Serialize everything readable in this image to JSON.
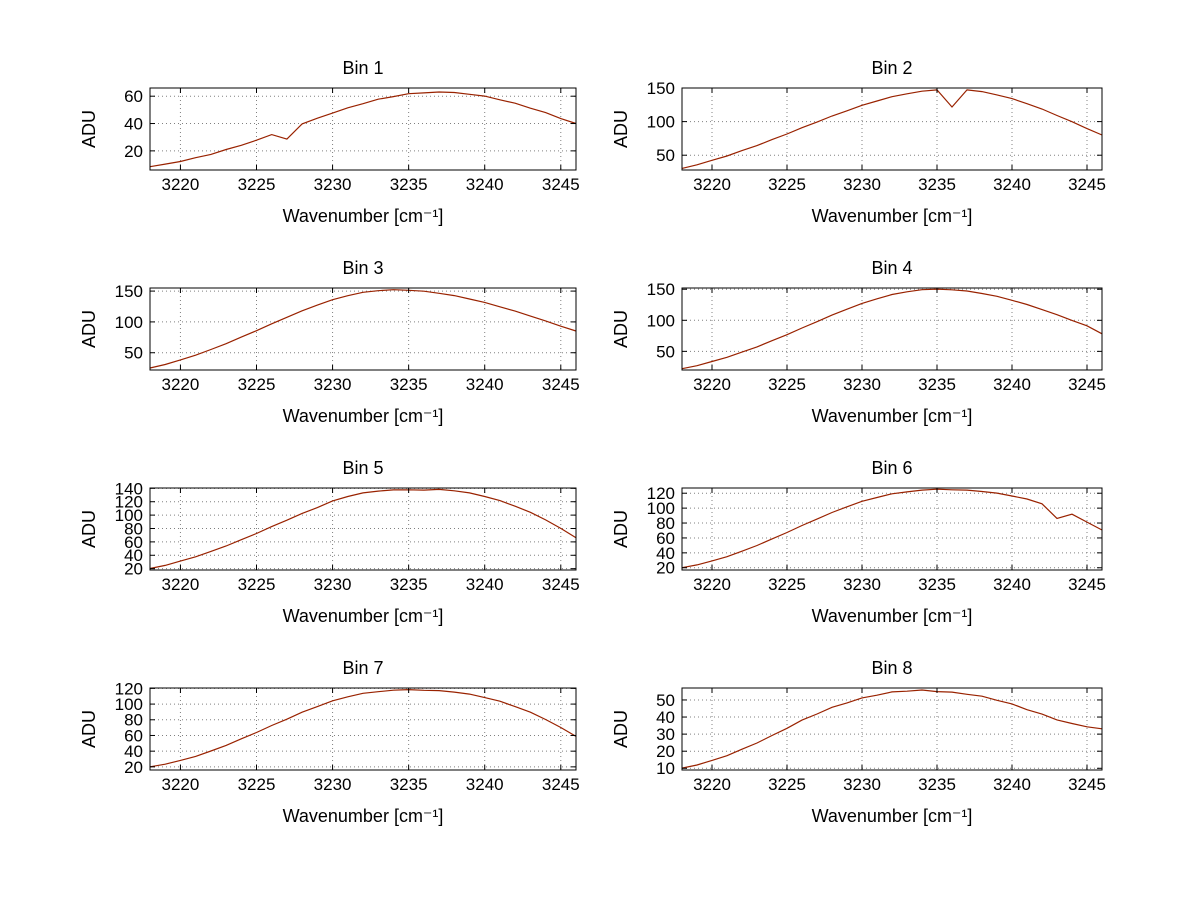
{
  "figure": {
    "background": "#ffffff",
    "line_color": "#992200",
    "grid_color": "#808080",
    "axis_color": "#000000"
  },
  "chart_data": [
    {
      "type": "line",
      "title": "Bin 1",
      "xlabel": "Wavenumber [cm⁻¹]",
      "ylabel": "ADU",
      "grid": true,
      "xlim": [
        3218,
        3246
      ],
      "ylim": [
        6,
        66
      ],
      "xticks": [
        3220,
        3225,
        3230,
        3235,
        3240,
        3245
      ],
      "yticks": [
        20,
        40,
        60
      ],
      "x": [
        3218,
        3219,
        3220,
        3221,
        3222,
        3223,
        3224,
        3225,
        3226,
        3227,
        3228,
        3229,
        3230,
        3231,
        3232,
        3233,
        3234,
        3235,
        3236,
        3237,
        3238,
        3239,
        3240,
        3241,
        3242,
        3243,
        3244,
        3245,
        3246
      ],
      "series": [
        {
          "name": "spectrum",
          "color": "#992200",
          "values": [
            8.4,
            10.3,
            12.2,
            15.0,
            17.4,
            21.0,
            24.1,
            27.8,
            31.9,
            28.6,
            39.7,
            43.9,
            47.6,
            51.5,
            54.5,
            57.8,
            59.7,
            61.8,
            62.4,
            63.1,
            62.7,
            61.4,
            60.1,
            57.4,
            54.9,
            51.2,
            48.0,
            43.6,
            40.0
          ]
        }
      ]
    },
    {
      "type": "line",
      "title": "Bin 2",
      "xlabel": "Wavenumber [cm⁻¹]",
      "ylabel": "ADU",
      "grid": true,
      "xlim": [
        3218,
        3246
      ],
      "ylim": [
        28,
        150
      ],
      "xticks": [
        3220,
        3225,
        3230,
        3235,
        3240,
        3245
      ],
      "yticks": [
        50,
        100,
        150
      ],
      "x": [
        3218,
        3219,
        3220,
        3221,
        3222,
        3223,
        3224,
        3225,
        3226,
        3227,
        3228,
        3229,
        3230,
        3231,
        3232,
        3233,
        3234,
        3235,
        3236,
        3237,
        3238,
        3239,
        3240,
        3241,
        3242,
        3243,
        3244,
        3245,
        3246
      ],
      "series": [
        {
          "name": "spectrum",
          "color": "#992200",
          "values": [
            30.4,
            35.7,
            42.5,
            48.9,
            56.8,
            64.3,
            73.3,
            81.6,
            90.9,
            99.3,
            108.4,
            116.1,
            124.3,
            130.6,
            137.1,
            141.4,
            145.3,
            147.1,
            121.8,
            147.2,
            144.6,
            139.8,
            134.3,
            126.6,
            118.8,
            109.1,
            99.9,
            89.6,
            80.1
          ]
        }
      ]
    },
    {
      "type": "line",
      "title": "Bin 3",
      "xlabel": "Wavenumber [cm⁻¹]",
      "ylabel": "ADU",
      "grid": true,
      "xlim": [
        3218,
        3246
      ],
      "ylim": [
        22,
        155
      ],
      "xticks": [
        3220,
        3225,
        3230,
        3235,
        3240,
        3245
      ],
      "yticks": [
        50,
        100,
        150
      ],
      "x": [
        3218,
        3219,
        3220,
        3221,
        3222,
        3223,
        3224,
        3225,
        3226,
        3227,
        3228,
        3229,
        3230,
        3231,
        3232,
        3233,
        3234,
        3235,
        3236,
        3237,
        3238,
        3239,
        3240,
        3241,
        3242,
        3243,
        3244,
        3245,
        3246
      ],
      "series": [
        {
          "name": "spectrum",
          "color": "#992200",
          "values": [
            25.2,
            30.9,
            38.4,
            46.0,
            55.3,
            64.6,
            75.3,
            85.7,
            97.0,
            107.4,
            118.1,
            127.2,
            136.0,
            142.5,
            148.0,
            150.7,
            152.2,
            151.2,
            149.8,
            146.4,
            142.7,
            137.2,
            131.7,
            124.5,
            117.5,
            109.4,
            101.7,
            93.1,
            85.2
          ]
        }
      ]
    },
    {
      "type": "line",
      "title": "Bin 4",
      "xlabel": "Wavenumber [cm⁻¹]",
      "ylabel": "ADU",
      "grid": true,
      "xlim": [
        3218,
        3246
      ],
      "ylim": [
        20,
        152
      ],
      "xticks": [
        3220,
        3225,
        3230,
        3235,
        3240,
        3245
      ],
      "yticks": [
        50,
        100,
        150
      ],
      "x": [
        3218,
        3219,
        3220,
        3221,
        3222,
        3223,
        3224,
        3225,
        3226,
        3227,
        3228,
        3229,
        3230,
        3231,
        3232,
        3233,
        3234,
        3235,
        3236,
        3237,
        3238,
        3239,
        3240,
        3241,
        3242,
        3243,
        3244,
        3245,
        3246
      ],
      "series": [
        {
          "name": "spectrum",
          "color": "#992200",
          "values": [
            22.1,
            27.0,
            33.7,
            40.4,
            48.8,
            57.2,
            67.1,
            76.8,
            87.6,
            97.7,
            108.4,
            117.8,
            127.2,
            134.6,
            141.5,
            145.9,
            149.2,
            150.1,
            149.1,
            147.2,
            143.2,
            138.7,
            132.2,
            125.5,
            117.2,
            109.1,
            99.9,
            91.2,
            78.2
          ]
        }
      ]
    },
    {
      "type": "line",
      "title": "Bin 5",
      "xlabel": "Wavenumber [cm⁻¹]",
      "ylabel": "ADU",
      "grid": true,
      "xlim": [
        3218,
        3246
      ],
      "ylim": [
        18,
        140.5
      ],
      "xticks": [
        3220,
        3225,
        3230,
        3235,
        3240,
        3245
      ],
      "yticks": [
        20,
        40,
        60,
        80,
        100,
        120,
        140
      ],
      "x": [
        3218,
        3219,
        3220,
        3221,
        3222,
        3223,
        3224,
        3225,
        3226,
        3227,
        3228,
        3229,
        3230,
        3231,
        3232,
        3233,
        3234,
        3235,
        3236,
        3237,
        3238,
        3239,
        3240,
        3241,
        3242,
        3243,
        3244,
        3245,
        3246
      ],
      "series": [
        {
          "name": "spectrum",
          "color": "#992200",
          "values": [
            20.2,
            24.9,
            31.3,
            37.7,
            45.8,
            53.8,
            63.3,
            72.6,
            82.9,
            92.4,
            102.5,
            111.2,
            121.2,
            127.8,
            133.2,
            135.8,
            137.7,
            137.8,
            137.4,
            138.4,
            136.3,
            133.2,
            127.8,
            121.7,
            113.3,
            104.2,
            92.8,
            80.2,
            66.3
          ]
        }
      ]
    },
    {
      "type": "line",
      "title": "Bin 6",
      "xlabel": "Wavenumber [cm⁻¹]",
      "ylabel": "ADU",
      "grid": true,
      "xlim": [
        3218,
        3246
      ],
      "ylim": [
        17,
        127
      ],
      "xticks": [
        3220,
        3225,
        3230,
        3235,
        3240,
        3245
      ],
      "yticks": [
        20,
        40,
        60,
        80,
        100,
        120
      ],
      "x": [
        3218,
        3219,
        3220,
        3221,
        3222,
        3223,
        3224,
        3225,
        3226,
        3227,
        3228,
        3229,
        3230,
        3231,
        3232,
        3233,
        3234,
        3235,
        3236,
        3237,
        3238,
        3239,
        3240,
        3241,
        3242,
        3243,
        3244,
        3245,
        3246
      ],
      "series": [
        {
          "name": "spectrum",
          "color": "#992200",
          "values": [
            20.1,
            23.9,
            29.2,
            34.8,
            42.2,
            49.8,
            58.7,
            67.3,
            76.7,
            85.3,
            94.2,
            101.8,
            109.2,
            114.3,
            119.2,
            121.8,
            124.2,
            125.4,
            124.6,
            124.2,
            122.3,
            120.2,
            116.3,
            112.2,
            105.8,
            86.2,
            91.8,
            81.3,
            70.7
          ]
        }
      ]
    },
    {
      "type": "line",
      "title": "Bin 7",
      "xlabel": "Wavenumber [cm⁻¹]",
      "ylabel": "ADU",
      "grid": true,
      "xlim": [
        3218,
        3246
      ],
      "ylim": [
        16,
        120.5
      ],
      "xticks": [
        3220,
        3225,
        3230,
        3235,
        3240,
        3245
      ],
      "yticks": [
        20,
        40,
        60,
        80,
        100,
        120
      ],
      "x": [
        3218,
        3219,
        3220,
        3221,
        3222,
        3223,
        3224,
        3225,
        3226,
        3227,
        3228,
        3229,
        3230,
        3231,
        3232,
        3233,
        3234,
        3235,
        3236,
        3237,
        3238,
        3239,
        3240,
        3241,
        3242,
        3243,
        3244,
        3245,
        3246
      ],
      "series": [
        {
          "name": "spectrum",
          "color": "#992200",
          "values": [
            20.1,
            23.4,
            28.2,
            33.3,
            40.2,
            47.3,
            55.7,
            63.8,
            72.7,
            80.8,
            89.7,
            96.8,
            104.2,
            109.3,
            113.7,
            115.8,
            117.7,
            118.4,
            117.6,
            117.2,
            115.3,
            112.7,
            108.3,
            103.7,
            96.8,
            89.7,
            80.3,
            70.2,
            58.8
          ]
        }
      ]
    },
    {
      "type": "line",
      "title": "Bin 8",
      "xlabel": "Wavenumber [cm⁻¹]",
      "ylabel": "ADU",
      "grid": true,
      "xlim": [
        3218,
        3246
      ],
      "ylim": [
        9,
        57
      ],
      "xticks": [
        3220,
        3225,
        3230,
        3235,
        3240,
        3245
      ],
      "yticks": [
        10,
        20,
        30,
        40,
        50
      ],
      "x": [
        3218,
        3219,
        3220,
        3221,
        3222,
        3223,
        3224,
        3225,
        3226,
        3227,
        3228,
        3229,
        3230,
        3231,
        3232,
        3233,
        3234,
        3235,
        3236,
        3237,
        3238,
        3239,
        3240,
        3241,
        3242,
        3243,
        3244,
        3245,
        3246
      ],
      "series": [
        {
          "name": "spectrum",
          "color": "#992200",
          "values": [
            10.1,
            11.9,
            14.6,
            17.4,
            21.2,
            24.8,
            29.2,
            33.4,
            38.2,
            41.8,
            45.7,
            48.3,
            51.2,
            52.8,
            54.7,
            55.1,
            55.8,
            54.9,
            54.6,
            53.3,
            52.2,
            49.8,
            47.7,
            44.3,
            41.7,
            38.3,
            36.2,
            34.3,
            33.1
          ]
        }
      ]
    }
  ]
}
